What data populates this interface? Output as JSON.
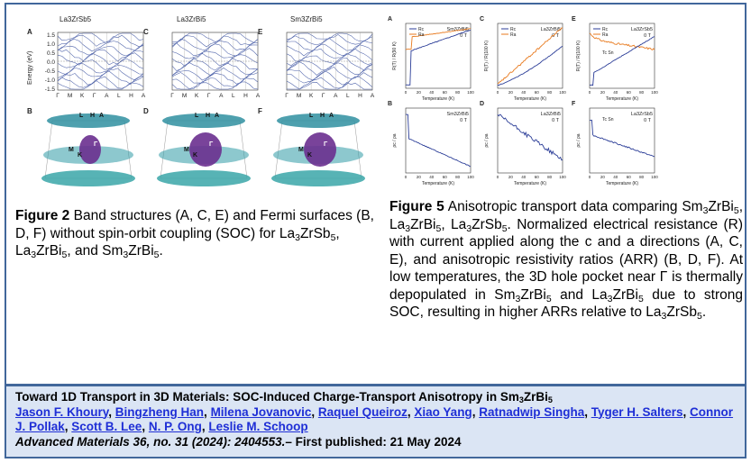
{
  "figure2": {
    "top_titles": [
      "La3ZrSb5",
      "La3ZrBi5",
      "Sm3ZrBi5"
    ],
    "panel_letters": [
      "A",
      "C",
      "E",
      "B",
      "D",
      "F"
    ],
    "ylabel": "Energy (eV)",
    "yticks": [
      "1.5",
      "1.0",
      "0.5",
      "0.0",
      "-0.5",
      "-1.0",
      "-1.5"
    ],
    "kpath": [
      "Γ",
      "M",
      "K",
      "Γ",
      "A",
      "L",
      "H",
      "A"
    ],
    "fs_labels": [
      "L",
      "H",
      "A",
      "M",
      "K",
      "Γ"
    ],
    "caption": {
      "label": "Figure 2",
      "text": "Band structures (A, C, E) and Fermi surfaces (B, D, F) without spin-orbit coupling (SOC) for La3ZrSb5, La3ZrBi5, and Sm3ZrBi5."
    }
  },
  "figure5": {
    "panels": [
      {
        "letter": "A",
        "compound": "Sm3ZrBi5",
        "ylabel": "R(T) / R(90 K)",
        "legend": [
          "Rc",
          "Ra"
        ],
        "field": "0 T"
      },
      {
        "letter": "C",
        "compound": "La3ZrBi5",
        "ylabel": "R(T) / R(100 K)",
        "legend": [
          "Rc",
          "Ra"
        ],
        "field": "0 T"
      },
      {
        "letter": "E",
        "compound": "La3ZrSb5",
        "ylabel": "R(T) / R(100 K)",
        "legend": [
          "Rc",
          "Ra"
        ],
        "field": "0 T",
        "annotation": "Tc Sn"
      },
      {
        "letter": "B",
        "compound": "Sm3ZrBi5",
        "ylabel": "ρc / ρa",
        "field": "0 T"
      },
      {
        "letter": "D",
        "compound": "La3ZrBi5",
        "ylabel": "ρc / ρa",
        "field": "0 T"
      },
      {
        "letter": "F",
        "compound": "La3ZrSb5",
        "ylabel": "ρc / ρa",
        "field": "0 T",
        "annotation": "Tc Sn"
      }
    ],
    "xlabel": "Temperature (K)",
    "xticks": [
      "0",
      "20",
      "40",
      "60",
      "80",
      "100"
    ],
    "caption": {
      "label": "Figure 5",
      "text": "Anisotropic transport data comparing Sm3ZrBi5, La3ZrBi5, La3ZrSb5. Normalized electrical resistance (R) with current applied along the c and a directions (A, C, E), and anisotropic resistivity ratios (ARR) (B, D, F). At low temperatures, the 3D hole pocket near Γ is thermally depopulated in Sm3ZrBi5 and La3ZrBi5 due to strong SOC, resulting in higher ARRs relative to La3ZrSb5."
    }
  },
  "citation": {
    "title": "Toward 1D Transport in 3D Materials: SOC-Induced Charge-Transport Anisotropy in Sm3ZrBi5",
    "authors": [
      "Jason F. Khoury",
      "Bingzheng Han",
      "Milena Jovanovic",
      "Raquel Queiroz",
      "Xiao Yang",
      "Ratnadwip Singha",
      "Tyger H. Salters",
      "Connor J. Pollak",
      "Scott B. Lee",
      "N. P. Ong",
      "Leslie M. Schoop"
    ],
    "journal": "Advanced Materials 36, no. 31 (2024): 2404553.",
    "published": "– First published: 21 May 2024"
  },
  "colors": {
    "frame": "#41679b",
    "citation_bg": "#dbe5f4",
    "link": "#1f2fd6",
    "rc": "#2c3e98",
    "ra": "#e87a1e"
  }
}
